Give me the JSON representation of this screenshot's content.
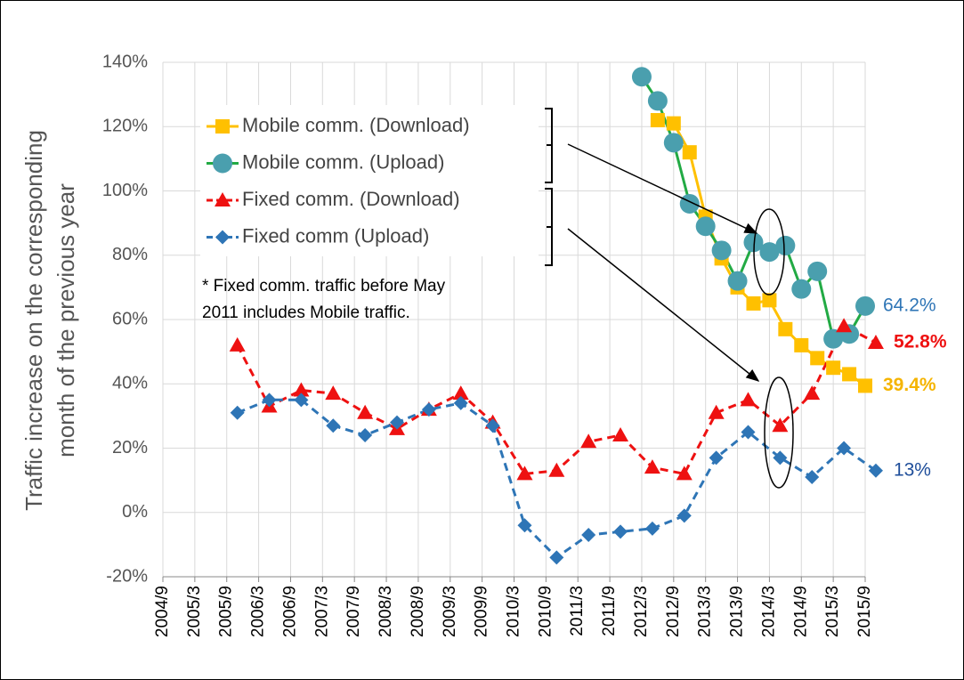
{
  "chart_data": {
    "type": "line",
    "ylabel": [
      "Traffic increase on the corresponding",
      "month of the previous year"
    ],
    "note": [
      "* Fixed comm. traffic before May",
      "2011 includes Mobile traffic."
    ],
    "xlim": [
      "2004/9",
      "2015/9"
    ],
    "xticks": [
      "2004/9",
      "2005/3",
      "2005/9",
      "2006/3",
      "2006/9",
      "2007/3",
      "2007/9",
      "2008/3",
      "2008/9",
      "2009/3",
      "2009/9",
      "2010/3",
      "2010/9",
      "2011/3",
      "2011/9",
      "2012/3",
      "2012/9",
      "2013/3",
      "2013/9",
      "2014/3",
      "2014/9",
      "2015/3",
      "2015/9"
    ],
    "ylim": [
      -20,
      140
    ],
    "yticks": [
      {
        "value": -20,
        "label": "-20%"
      },
      {
        "value": 0,
        "label": "0%"
      },
      {
        "value": 20,
        "label": "20%"
      },
      {
        "value": 40,
        "label": "40%"
      },
      {
        "value": 60,
        "label": "60%"
      },
      {
        "value": 80,
        "label": "80%"
      },
      {
        "value": 100,
        "label": "100%"
      },
      {
        "value": 120,
        "label": "120%"
      },
      {
        "value": 140,
        "label": "140%"
      }
    ],
    "grid": true,
    "series": [
      {
        "name": "Mobile comm. (Download)",
        "color": "#ffc000",
        "line_color": "#ffc000",
        "marker": "square",
        "dash": false,
        "label_color": "#f5b400",
        "x": [
          "2012/6",
          "2012/9",
          "2012/12",
          "2013/3",
          "2013/6",
          "2013/9",
          "2013/12",
          "2014/3",
          "2014/6",
          "2014/9",
          "2014/12",
          "2015/3",
          "2015/6",
          "2015/9"
        ],
        "values": [
          122,
          121,
          112,
          92,
          79,
          70,
          65,
          66,
          57,
          52,
          48,
          45,
          43,
          39.4
        ],
        "value_labels": [
          null,
          null,
          null,
          null,
          null,
          null,
          null,
          null,
          null,
          null,
          null,
          null,
          null,
          "39.4%"
        ]
      },
      {
        "name": "Mobile comm. (Upload)",
        "color": "#4a9fae",
        "line_color": "#22aa44",
        "marker": "circle",
        "dash": false,
        "label_color": "#2e75b6",
        "x": [
          "2012/3",
          "2012/6",
          "2012/9",
          "2012/12",
          "2013/3",
          "2013/6",
          "2013/9",
          "2013/12",
          "2014/3",
          "2014/6",
          "2014/9",
          "2014/12",
          "2015/3",
          "2015/6",
          "2015/9"
        ],
        "values": [
          135.5,
          128,
          115,
          96,
          89,
          81.5,
          72,
          84,
          81,
          83,
          69.5,
          75,
          54,
          55.5,
          64.2
        ],
        "value_labels": [
          null,
          null,
          null,
          null,
          null,
          null,
          null,
          null,
          null,
          null,
          null,
          null,
          null,
          null,
          "64.2%"
        ]
      },
      {
        "name": "Fixed comm. (Download)",
        "color": "#ee1111",
        "line_color": "#ee1111",
        "marker": "triangle",
        "dash": true,
        "label_color": "#ee1111",
        "x": [
          "2005/11",
          "2006/5",
          "2006/11",
          "2007/5",
          "2007/11",
          "2008/5",
          "2008/11",
          "2009/5",
          "2009/11",
          "2010/5",
          "2010/11",
          "2011/5",
          "2011/11",
          "2012/5",
          "2012/11",
          "2013/5",
          "2013/11",
          "2014/5",
          "2014/11",
          "2015/5",
          "2015/11"
        ],
        "values": [
          52,
          33,
          38,
          37,
          31,
          26,
          32,
          37,
          28,
          12,
          13,
          22,
          24,
          14,
          12,
          31,
          35,
          27,
          37,
          58,
          52.8
        ],
        "value_labels": [
          null,
          null,
          null,
          null,
          null,
          null,
          null,
          null,
          null,
          null,
          null,
          null,
          null,
          null,
          null,
          null,
          null,
          null,
          null,
          null,
          "52.8%"
        ]
      },
      {
        "name": "Fixed comm (Upload)",
        "color": "#2e75b6",
        "line_color": "#2e75b6",
        "marker": "diamond",
        "dash": true,
        "label_color": "#1f4e9a",
        "x": [
          "2005/11",
          "2006/5",
          "2006/11",
          "2007/5",
          "2007/11",
          "2008/5",
          "2008/11",
          "2009/5",
          "2009/11",
          "2010/5",
          "2010/11",
          "2011/5",
          "2011/11",
          "2012/5",
          "2012/11",
          "2013/5",
          "2013/11",
          "2014/5",
          "2014/11",
          "2015/5",
          "2015/11"
        ],
        "values": [
          31,
          35,
          35,
          27,
          24,
          28,
          32,
          34,
          27,
          -4,
          -14,
          -7,
          -6,
          -5,
          -1,
          17,
          25,
          17,
          11,
          20,
          13
        ],
        "value_labels": [
          null,
          null,
          null,
          null,
          null,
          null,
          null,
          null,
          null,
          null,
          null,
          null,
          null,
          null,
          null,
          null,
          null,
          null,
          null,
          null,
          "13%"
        ]
      }
    ]
  }
}
